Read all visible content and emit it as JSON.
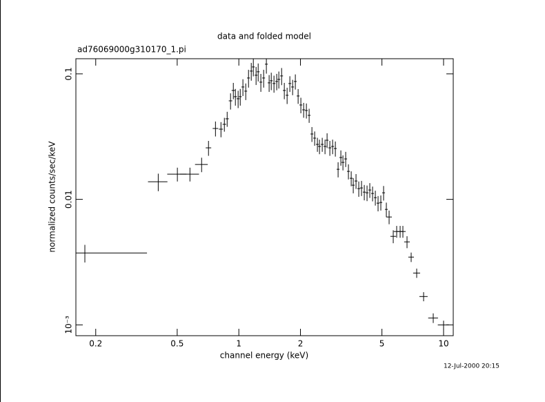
{
  "chart_data": {
    "type": "scatter",
    "title": "data and folded model",
    "subtitle": "ad76069000g310170_1.pi",
    "xlabel": "channel energy (keV)",
    "ylabel": "normalized counts/sec/keV",
    "annotation": "12-Jul-2000 20:15",
    "color": "#000000",
    "xscale": "log",
    "yscale": "log",
    "xlim": [
      0.16,
      11.15
    ],
    "ylim": [
      0.00082,
      0.132
    ],
    "xticks": [
      0.2,
      0.5,
      1,
      2,
      5,
      10
    ],
    "yticks": [
      {
        "value": 0.001,
        "label": "10⁻³"
      },
      0.01,
      0.1
    ],
    "x": [
      0.177,
      0.404,
      0.501,
      0.577,
      0.658,
      0.711,
      0.769,
      0.818,
      0.85,
      0.877,
      0.911,
      0.94,
      0.962,
      0.992,
      1.016,
      1.047,
      1.081,
      1.115,
      1.15,
      1.177,
      1.214,
      1.243,
      1.281,
      1.322,
      1.363,
      1.406,
      1.44,
      1.485,
      1.531,
      1.568,
      1.618,
      1.668,
      1.721,
      1.775,
      1.831,
      1.888,
      1.948,
      2.009,
      2.073,
      2.138,
      2.205,
      2.275,
      2.346,
      2.42,
      2.477,
      2.555,
      2.636,
      2.698,
      2.783,
      2.871,
      2.961,
      3.054,
      3.15,
      3.225,
      3.326,
      3.43,
      3.539,
      3.622,
      3.736,
      3.853,
      3.974,
      4.1,
      4.229,
      4.362,
      4.5,
      4.642,
      4.787,
      4.938,
      5.094,
      5.254,
      5.42,
      5.678,
      5.902,
      6.136,
      6.328,
      6.63,
      6.946,
      7.391,
      7.989,
      8.903,
      10.0
    ],
    "xerr": [
      [
        0.017,
        0.179
      ],
      0.044,
      0.054,
      0.062,
      0.047,
      0.022,
      0.024,
      0.019,
      0.017,
      0.017,
      0.018,
      0.018,
      0.017,
      0.017,
      0.017,
      0.017,
      0.017,
      0.018,
      0.018,
      0.019,
      0.019,
      0.02,
      0.02,
      0.021,
      0.022,
      0.022,
      0.023,
      0.024,
      0.024,
      0.025,
      0.026,
      0.027,
      0.027,
      0.028,
      0.029,
      0.03,
      0.031,
      0.032,
      0.033,
      0.034,
      0.035,
      0.036,
      0.037,
      0.039,
      0.04,
      0.041,
      0.042,
      0.043,
      0.044,
      0.046,
      0.047,
      0.049,
      0.05,
      0.052,
      0.053,
      0.055,
      0.057,
      0.058,
      0.06,
      0.062,
      0.064,
      0.066,
      0.068,
      0.07,
      0.072,
      0.074,
      0.077,
      0.079,
      0.082,
      0.084,
      0.17,
      0.18,
      0.19,
      0.2,
      0.2,
      0.21,
      0.22,
      0.29,
      0.37,
      0.49,
      0.63
    ],
    "y": [
      0.00374,
      0.01382,
      0.01588,
      0.01588,
      0.01897,
      0.02573,
      0.0367,
      0.03624,
      0.03962,
      0.04385,
      0.06095,
      0.07373,
      0.0658,
      0.06334,
      0.0658,
      0.07858,
      0.07281,
      0.09267,
      0.1052,
      0.1135,
      0.0975,
      0.1039,
      0.08588,
      0.09267,
      0.1194,
      0.0848,
      0.0881,
      0.08374,
      0.08697,
      0.09035,
      0.09627,
      0.07373,
      0.06749,
      0.08374,
      0.07858,
      0.08697,
      0.06664,
      0.05649,
      0.05169,
      0.05105,
      0.0467,
      0.03317,
      0.03074,
      0.02742,
      0.0264,
      0.02742,
      0.0264,
      0.02959,
      0.02573,
      0.0264,
      0.02541,
      0.01736,
      0.02154,
      0.01971,
      0.021,
      0.01671,
      0.01472,
      0.01297,
      0.014,
      0.01218,
      0.01233,
      0.01142,
      0.01128,
      0.01187,
      0.01114,
      0.01032,
      0.009326,
      0.009445,
      0.01128,
      0.008318,
      0.007236,
      0.005072,
      0.005544,
      0.005544,
      0.005544,
      0.004584,
      0.003467,
      0.002588,
      0.001682,
      0.001135,
      0.001
    ],
    "yerr": [
      0.0006,
      0.0022,
      0.002,
      0.002,
      0.0025,
      0.0035,
      0.005,
      0.005,
      0.005,
      0.006,
      0.009,
      0.011,
      0.01,
      0.01,
      0.01,
      0.012,
      0.011,
      0.015,
      0.017,
      0.018,
      0.016,
      0.017,
      0.014,
      0.015,
      0.019,
      0.013,
      0.014,
      0.013,
      0.013,
      0.014,
      0.015,
      0.011,
      0.01,
      0.012,
      0.011,
      0.012,
      0.009,
      0.008,
      0.007,
      0.007,
      0.006,
      0.0045,
      0.004,
      0.0035,
      0.0035,
      0.0035,
      0.0035,
      0.004,
      0.0035,
      0.0035,
      0.0035,
      0.0024,
      0.003,
      0.0027,
      0.0029,
      0.0023,
      0.002,
      0.0018,
      0.0019,
      0.0017,
      0.0017,
      0.0016,
      0.0016,
      0.0016,
      0.0015,
      0.0014,
      0.0013,
      0.0013,
      0.0015,
      0.0011,
      0.0009,
      0.0006,
      0.0006,
      0.0006,
      0.0006,
      0.0005,
      0.0003,
      0.00022,
      0.00014,
      0.0001,
      8e-05
    ]
  }
}
